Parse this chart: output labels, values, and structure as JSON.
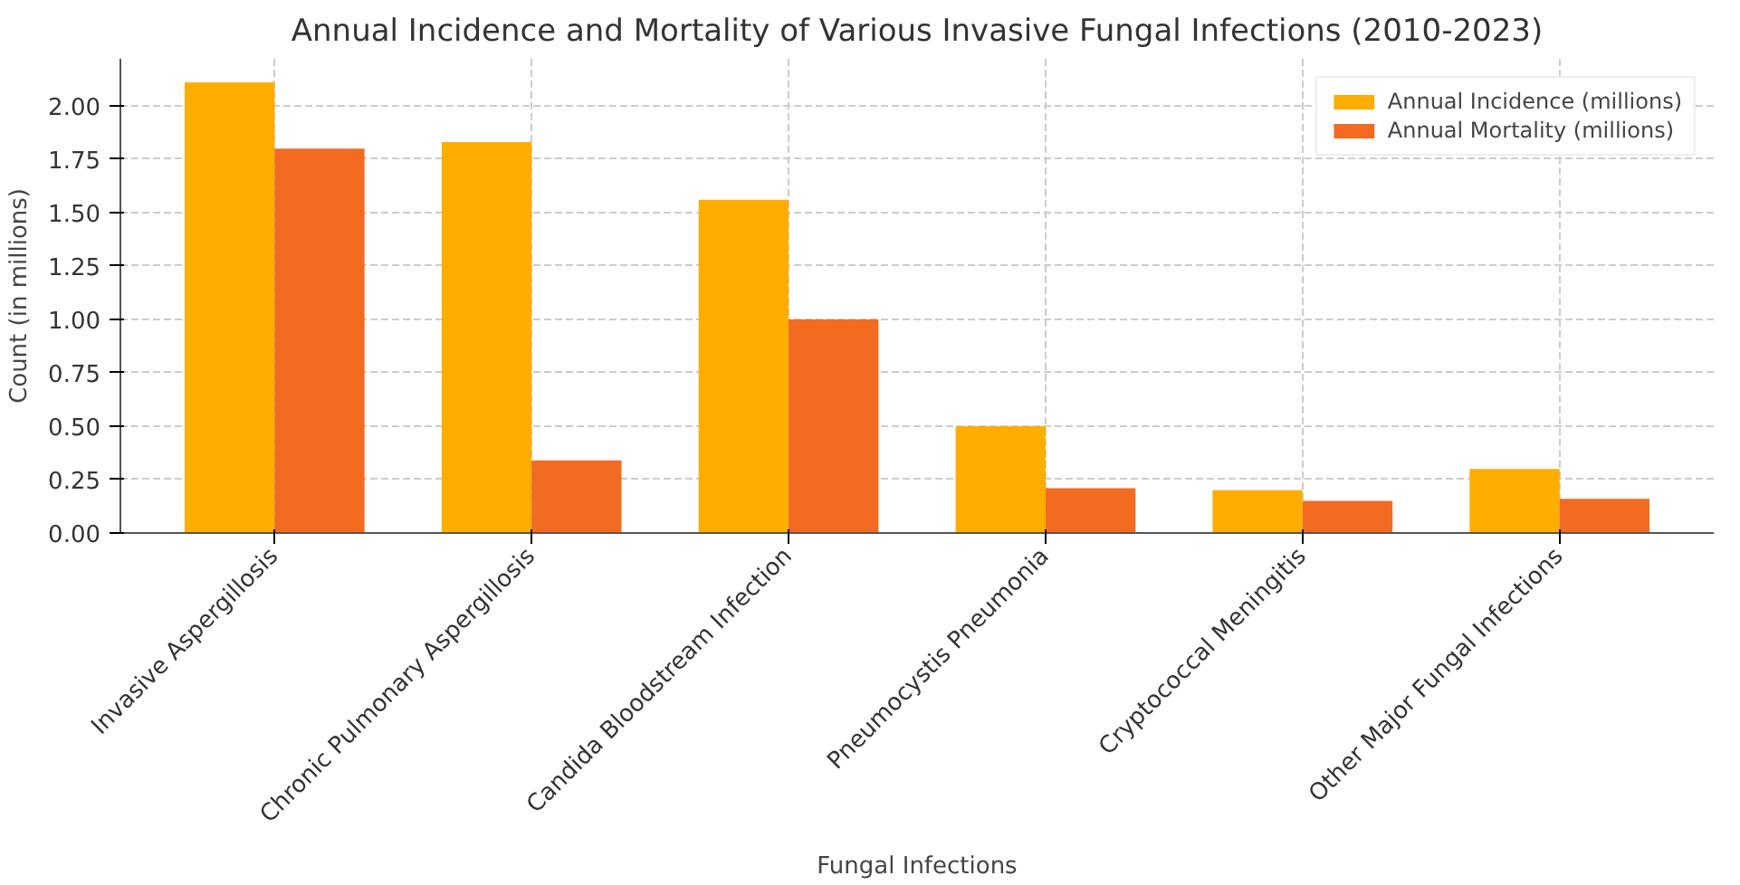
{
  "chart_data": {
    "type": "bar",
    "title": "Annual Incidence and Mortality of Various Invasive Fungal Infections (2010-2023)",
    "xlabel": "Fungal Infections",
    "ylabel": "Count (in millions)",
    "categories": [
      "Invasive Aspergillosis",
      "Chronic Pulmonary Aspergillosis",
      "Candida Bloodstream Infection",
      "Pneumocystis Pneumonia",
      "Cryptococcal Meningitis",
      "Other Major Fungal Infections"
    ],
    "series": [
      {
        "name": "Annual Incidence (millions)",
        "color": "#ffad00",
        "values": [
          2.11,
          1.83,
          1.56,
          0.5,
          0.2,
          0.3
        ]
      },
      {
        "name": "Annual Mortality (millions)",
        "color": "#f26b21",
        "values": [
          1.8,
          0.34,
          1.0,
          0.21,
          0.15,
          0.16
        ]
      }
    ],
    "ylim": [
      0,
      2.22
    ],
    "yticks": [
      {
        "value": 0,
        "label": "0.00"
      },
      {
        "value": 0.25,
        "label": "0.25"
      },
      {
        "value": 0.5,
        "label": "0.50"
      },
      {
        "value": 0.75,
        "label": "0.75"
      },
      {
        "value": 1,
        "label": "1.00"
      },
      {
        "value": 1.25,
        "label": "1.25"
      },
      {
        "value": 1.5,
        "label": "1.50"
      },
      {
        "value": 1.75,
        "label": "1.75"
      },
      {
        "value": 2,
        "label": "2.00"
      }
    ],
    "grid": true,
    "legend": "top right"
  }
}
